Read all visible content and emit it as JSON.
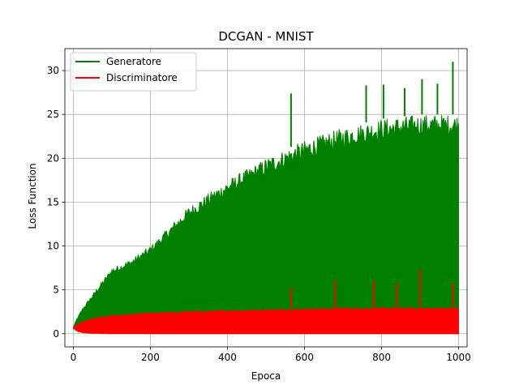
{
  "chart_data": {
    "type": "line",
    "title": "DCGAN - MNIST",
    "xlabel": "Epoca",
    "ylabel": "Loss Function",
    "xlim": [
      -22,
      1022
    ],
    "ylim": [
      -1.5,
      32.5
    ],
    "xticks": [
      0,
      200,
      400,
      600,
      800,
      1000
    ],
    "yticks": [
      0,
      5,
      10,
      15,
      20,
      25,
      30
    ],
    "grid": true,
    "legend_position": "top-left",
    "series": [
      {
        "name": "Generatore",
        "color": "#008000",
        "envelope_x": [
          0,
          10,
          25,
          50,
          100,
          150,
          200,
          300,
          400,
          500,
          600,
          700,
          800,
          900,
          1000
        ],
        "upper": [
          0.8,
          1.8,
          3.0,
          4.5,
          7.5,
          8.5,
          10.0,
          14.5,
          17.5,
          20.0,
          22.0,
          23.5,
          24.5,
          25.0,
          25.0
        ],
        "lower": [
          0.6,
          0.5,
          0.4,
          0.3,
          0.1,
          0.05,
          0.0,
          0.0,
          0.0,
          0.0,
          0.0,
          0.0,
          0.0,
          0.0,
          0.0
        ],
        "spikes": [
          {
            "x": 565,
            "y": 27.4
          },
          {
            "x": 760,
            "y": 28.3
          },
          {
            "x": 805,
            "y": 28.4
          },
          {
            "x": 860,
            "y": 28.0
          },
          {
            "x": 905,
            "y": 29.0
          },
          {
            "x": 945,
            "y": 28.5
          },
          {
            "x": 985,
            "y": 31.0
          }
        ]
      },
      {
        "name": "Discriminatore",
        "color": "#ff0000",
        "envelope_x": [
          0,
          10,
          25,
          50,
          100,
          150,
          200,
          300,
          400,
          500,
          600,
          700,
          800,
          900,
          1000
        ],
        "upper": [
          0.8,
          1.1,
          1.4,
          1.8,
          2.1,
          2.3,
          2.4,
          2.6,
          2.7,
          2.8,
          2.9,
          3.0,
          3.0,
          3.0,
          3.0
        ],
        "lower": [
          0.6,
          0.3,
          0.1,
          0.05,
          0.0,
          0.0,
          0.0,
          0.0,
          0.0,
          0.0,
          0.0,
          0.0,
          0.0,
          0.0,
          0.0
        ],
        "spikes": [
          {
            "x": 565,
            "y": 5.2
          },
          {
            "x": 680,
            "y": 6.2
          },
          {
            "x": 780,
            "y": 6.0
          },
          {
            "x": 840,
            "y": 5.8
          },
          {
            "x": 900,
            "y": 7.3
          },
          {
            "x": 985,
            "y": 5.8
          }
        ]
      }
    ]
  }
}
